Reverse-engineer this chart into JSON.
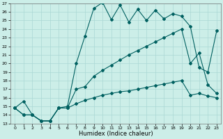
{
  "xlabel": "Humidex (Indice chaleur)",
  "bg_color": "#cceee8",
  "line_color": "#006060",
  "grid_color": "#aad8d4",
  "ylim": [
    13,
    27
  ],
  "xlim": [
    -0.5,
    23.5
  ],
  "yticks": [
    13,
    14,
    15,
    16,
    17,
    18,
    19,
    20,
    21,
    22,
    23,
    24,
    25,
    26,
    27
  ],
  "xticks": [
    0,
    1,
    2,
    3,
    4,
    5,
    6,
    7,
    8,
    9,
    10,
    11,
    12,
    13,
    14,
    15,
    16,
    17,
    18,
    19,
    20,
    21,
    22,
    23
  ],
  "series1_x": [
    0,
    1,
    2,
    3,
    4,
    5,
    6,
    7,
    8,
    9,
    10,
    11,
    12,
    13,
    14,
    15,
    16,
    17,
    18,
    19,
    20,
    21,
    22,
    23
  ],
  "series1_y": [
    14.8,
    15.6,
    14.0,
    13.3,
    13.3,
    14.8,
    15.0,
    20.0,
    23.2,
    26.4,
    27.1,
    25.1,
    26.8,
    24.8,
    26.3,
    25.0,
    26.2,
    25.2,
    25.8,
    25.5,
    24.3,
    19.5,
    19.0,
    23.8
  ],
  "series2_x": [
    0,
    1,
    2,
    3,
    4,
    5,
    6,
    7,
    8,
    9,
    10,
    11,
    12,
    13,
    14,
    15,
    16,
    17,
    18,
    19,
    20,
    21,
    22,
    23
  ],
  "series2_y": [
    14.8,
    14.0,
    14.0,
    13.3,
    13.3,
    14.8,
    14.8,
    17.0,
    17.3,
    18.5,
    19.2,
    19.8,
    20.4,
    21.0,
    21.5,
    22.0,
    22.5,
    23.0,
    23.5,
    24.0,
    20.0,
    21.2,
    17.5,
    16.5
  ],
  "series3_x": [
    0,
    1,
    2,
    3,
    4,
    5,
    6,
    7,
    8,
    9,
    10,
    11,
    12,
    13,
    14,
    15,
    16,
    17,
    18,
    19,
    20,
    21,
    22,
    23
  ],
  "series3_y": [
    14.8,
    14.0,
    14.0,
    13.3,
    13.3,
    14.8,
    14.8,
    15.3,
    15.7,
    16.0,
    16.3,
    16.5,
    16.7,
    16.8,
    17.0,
    17.2,
    17.4,
    17.6,
    17.8,
    18.0,
    16.3,
    16.5,
    16.2,
    16.0
  ],
  "marker": "D",
  "markersize": 2.0,
  "linewidth": 0.8
}
